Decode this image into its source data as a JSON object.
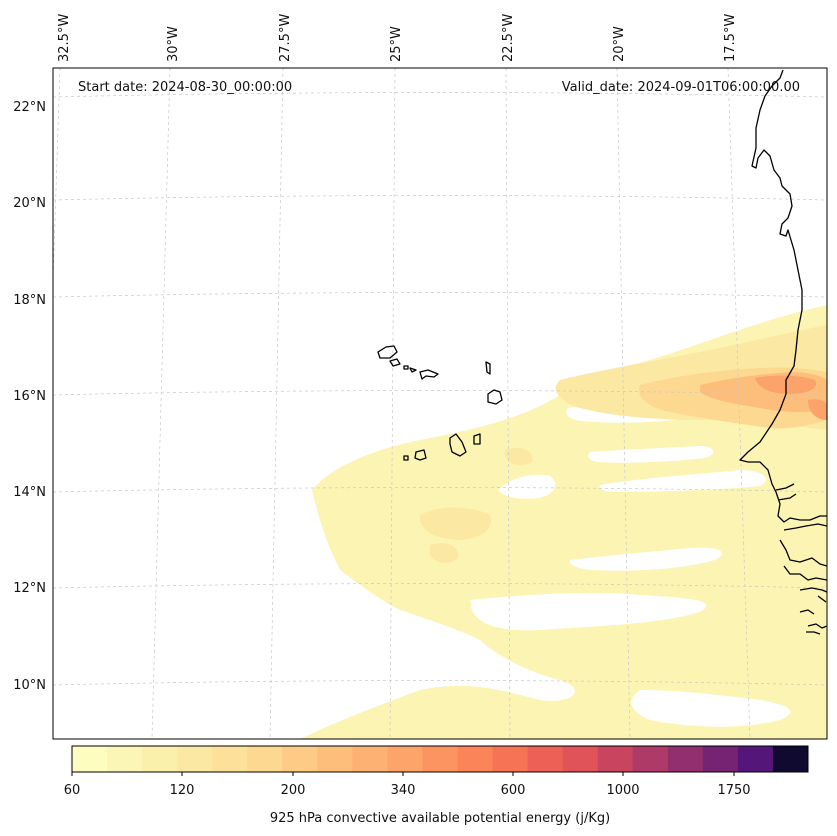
{
  "header": {
    "start_date": "Start date: 2024-08-30_00:00:00",
    "valid_date": "Valid_date: 2024-09-01T06:00:00.00"
  },
  "axes": {
    "longitude_labels": [
      "32.5°W",
      "30°W",
      "27.5°W",
      "25°W",
      "22.5°W",
      "20°W",
      "17.5°W"
    ],
    "latitude_labels": [
      "22°N",
      "20°N",
      "18°N",
      "16°N",
      "14°N",
      "12°N",
      "10°N"
    ]
  },
  "colorbar": {
    "label": "925 hPa convective available potential energy (j/Kg)",
    "tick_labels": [
      "60",
      "120",
      "200",
      "340",
      "600",
      "1000",
      "1750"
    ],
    "colors": [
      "#fcfdbf",
      "#fbf5b6",
      "#fbefac",
      "#fbe8a2",
      "#fde19a",
      "#fdd891",
      "#fdcb86",
      "#fdbe7c",
      "#fdb273",
      "#fda46a",
      "#fc9461",
      "#fb8559",
      "#f67355",
      "#ec6055",
      "#e05358",
      "#c9455f",
      "#ae3a68",
      "#922f6e",
      "#762374",
      "#541779",
      "#110a30"
    ],
    "levels": [
      60,
      70,
      80,
      90,
      100,
      120,
      140,
      160,
      180,
      200,
      240,
      280,
      340,
      420,
      500,
      600,
      750,
      850,
      1000,
      1250,
      1750,
      2000
    ]
  },
  "legend_colors": {
    "coastline": "#000000",
    "gridline": "#c8c8c8"
  }
}
